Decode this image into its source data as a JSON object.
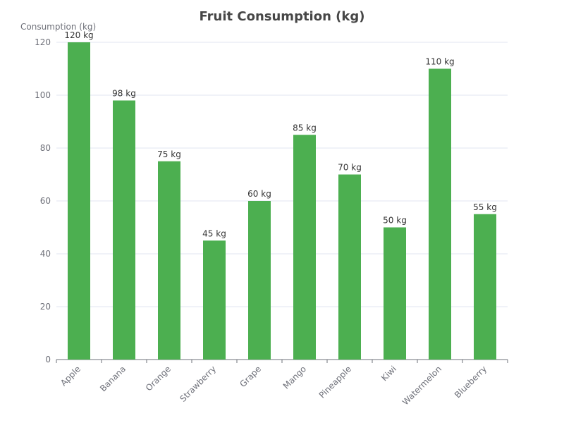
{
  "chart_data": {
    "type": "bar",
    "title": "Fruit Consumption (kg)",
    "xlabel": "",
    "ylabel": "Consumption (kg)",
    "categories": [
      "Apple",
      "Banana",
      "Orange",
      "Strawberry",
      "Grape",
      "Mango",
      "Pineapple",
      "Kiwi",
      "Watermelon",
      "Blueberry"
    ],
    "values": [
      120,
      98,
      75,
      45,
      60,
      85,
      70,
      50,
      110,
      55
    ],
    "data_labels": [
      "120 kg",
      "98 kg",
      "75 kg",
      "45 kg",
      "60 kg",
      "85 kg",
      "70 kg",
      "50 kg",
      "110 kg",
      "55 kg"
    ],
    "ylim": [
      0,
      120
    ],
    "yticks": [
      0,
      20,
      40,
      60,
      80,
      100,
      120
    ],
    "grid": true,
    "legend": "none",
    "bar_color": "#4caf50",
    "grid_color": "#e0e6f1",
    "axis_color": "#6e7079"
  }
}
